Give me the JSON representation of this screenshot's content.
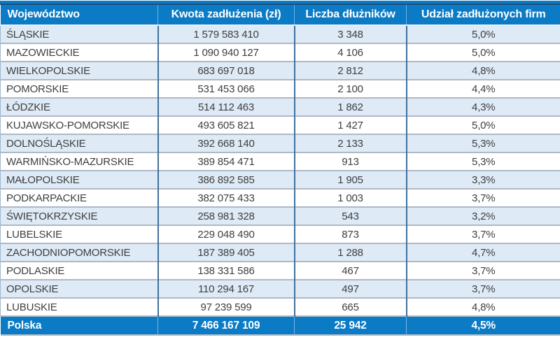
{
  "table": {
    "columns": [
      "Województwo",
      "Kwota zadłużenia (zł)",
      "Liczba dłużników",
      "Udział zadłużonych firm"
    ],
    "rows": [
      {
        "region": "ŚLĄSKIE",
        "amount": "1 579 583 410",
        "debtors": "3 348",
        "share": "5,0%"
      },
      {
        "region": "MAZOWIECKIE",
        "amount": "1 090 940 127",
        "debtors": "4 106",
        "share": "5,0%"
      },
      {
        "region": "WIELKOPOLSKIE",
        "amount": "683 697 018",
        "debtors": "2 812",
        "share": "4,8%"
      },
      {
        "region": "POMORSKIE",
        "amount": "531 453 066",
        "debtors": "2 100",
        "share": "4,4%"
      },
      {
        "region": "ŁÓDZKIE",
        "amount": "514 112 463",
        "debtors": "1 862",
        "share": "4,3%"
      },
      {
        "region": "KUJAWSKO-POMORSKIE",
        "amount": "493 605 821",
        "debtors": "1 427",
        "share": "5,0%"
      },
      {
        "region": "DOLNOŚLĄSKIE",
        "amount": "392 668 140",
        "debtors": "2 133",
        "share": "5,3%"
      },
      {
        "region": "WARMIŃSKO-MAZURSKIE",
        "amount": "389 854 471",
        "debtors": "913",
        "share": "5,3%"
      },
      {
        "region": "MAŁOPOLSKIE",
        "amount": "386 892 585",
        "debtors": "1 905",
        "share": "3,3%"
      },
      {
        "region": "PODKARPACKIE",
        "amount": "382 075 433",
        "debtors": "1 003",
        "share": "3,7%"
      },
      {
        "region": "ŚWIĘTOKRZYSKIE",
        "amount": "258 981 328",
        "debtors": "543",
        "share": "3,2%"
      },
      {
        "region": "LUBELSKIE",
        "amount": "229 048 490",
        "debtors": "873",
        "share": "3,7%"
      },
      {
        "region": "ZACHODNIOPOMORSKIE",
        "amount": "187 389 405",
        "debtors": "1 288",
        "share": "4,7%"
      },
      {
        "region": "PODLASKIE",
        "amount": "138 331 586",
        "debtors": "467",
        "share": "3,7%"
      },
      {
        "region": "OPOLSKIE",
        "amount": "110 294 167",
        "debtors": "497",
        "share": "3,7%"
      },
      {
        "region": "LUBUSKIE",
        "amount": "97 239 599",
        "debtors": "665",
        "share": "4,8%"
      }
    ],
    "footer": {
      "region": "Polska",
      "amount": "7 466 167 109",
      "debtors": "25 942",
      "share": "4,5%"
    }
  },
  "chart_data": {
    "type": "table",
    "title": "",
    "columns": [
      "Województwo",
      "Kwota zadłużenia (zł)",
      "Liczba dłużników",
      "Udział zadłużonych firm"
    ],
    "rows": [
      [
        "ŚLĄSKIE",
        1579583410,
        3348,
        "5,0%"
      ],
      [
        "MAZOWIECKIE",
        1090940127,
        4106,
        "5,0%"
      ],
      [
        "WIELKOPOLSKIE",
        683697018,
        2812,
        "4,8%"
      ],
      [
        "POMORSKIE",
        531453066,
        2100,
        "4,4%"
      ],
      [
        "ŁÓDZKIE",
        514112463,
        1862,
        "4,3%"
      ],
      [
        "KUJAWSKO-POMORSKIE",
        493605821,
        1427,
        "5,0%"
      ],
      [
        "DOLNOŚLĄSKIE",
        392668140,
        2133,
        "5,3%"
      ],
      [
        "WARMIŃSKO-MAZURSKIE",
        389854471,
        913,
        "5,3%"
      ],
      [
        "MAŁOPOLSKIE",
        386892585,
        1905,
        "3,3%"
      ],
      [
        "PODKARPACKIE",
        382075433,
        1003,
        "3,7%"
      ],
      [
        "ŚWIĘTOKRZYSKIE",
        258981328,
        543,
        "3,2%"
      ],
      [
        "LUBELSKIE",
        229048490,
        873,
        "3,7%"
      ],
      [
        "ZACHODNIOPOMORSKIE",
        187389405,
        1288,
        "4,7%"
      ],
      [
        "PODLASKIE",
        138331586,
        467,
        "3,7%"
      ],
      [
        "OPOLSKIE",
        110294167,
        497,
        "3,7%"
      ],
      [
        "LUBUSKIE",
        97239599,
        665,
        "4,8%"
      ]
    ],
    "total_row": [
      "Polska",
      7466167109,
      25942,
      "4,5%"
    ],
    "layout": {
      "striped": true,
      "stripe_rows": "odd",
      "header_position": "top",
      "total_position": "bottom"
    }
  },
  "colors": {
    "header_fill": "#0b7bc6",
    "header_text": "#ffffff",
    "stripe_fill": "#deeaf6",
    "row_fill": "#ffffff",
    "body_text": "#3f3f3f",
    "vertical_grid": "#41719c",
    "horizontal_grid": "#aeb9c3",
    "top_navy_line": "#1f4e79"
  }
}
